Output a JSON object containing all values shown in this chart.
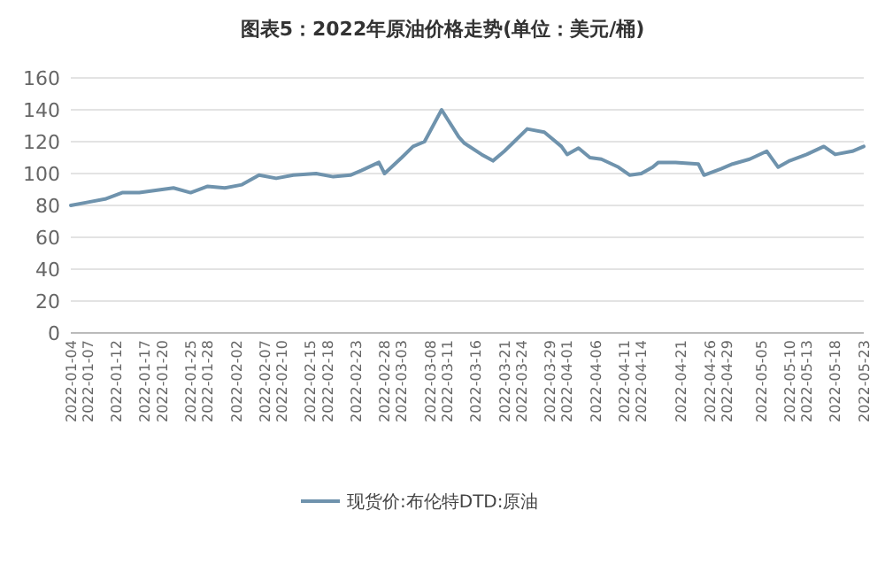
{
  "chart_data": {
    "type": "line",
    "title": "图表5：2022年原油价格走势(单位：美元/桶)",
    "x": [
      "2022-01-04",
      "2022-01-07",
      "2022-01-10",
      "2022-01-13",
      "2022-01-16",
      "2022-01-20",
      "2022-01-22",
      "2022-01-25",
      "2022-01-28",
      "2022-01-31",
      "2022-02-03",
      "2022-02-06",
      "2022-02-09",
      "2022-02-12",
      "2022-02-16",
      "2022-02-19",
      "2022-02-22",
      "2022-02-24",
      "2022-02-27",
      "2022-02-28",
      "2022-03-03",
      "2022-03-05",
      "2022-03-07",
      "2022-03-10",
      "2022-03-13",
      "2022-03-14",
      "2022-03-17",
      "2022-03-19",
      "2022-03-21",
      "2022-03-23",
      "2022-03-25",
      "2022-03-28",
      "2022-03-31",
      "2022-04-01",
      "2022-04-03",
      "2022-04-05",
      "2022-04-07",
      "2022-04-10",
      "2022-04-12",
      "2022-04-14",
      "2022-04-16",
      "2022-04-17",
      "2022-04-20",
      "2022-04-24",
      "2022-04-25",
      "2022-04-28",
      "2022-04-30",
      "2022-05-03",
      "2022-05-06",
      "2022-05-08",
      "2022-05-10",
      "2022-05-13",
      "2022-05-16",
      "2022-05-18",
      "2022-05-21",
      "2022-05-23"
    ],
    "series": [
      {
        "name": "现货价:布伦特DTD:原油",
        "color": "#6f93ad",
        "values": [
          80,
          82,
          84,
          88,
          88,
          90,
          91,
          88,
          92,
          91,
          93,
          99,
          97,
          99,
          100,
          98,
          99,
          102,
          107,
          100,
          110,
          117,
          120,
          140,
          123,
          119,
          112,
          108,
          114,
          121,
          128,
          126,
          117,
          112,
          116,
          110,
          109,
          104,
          99,
          100,
          104,
          107,
          107,
          106,
          99,
          103,
          106,
          109,
          114,
          104,
          108,
          112,
          117,
          112,
          114,
          117
        ]
      }
    ],
    "xlim": [
      "2022-01-04",
      "2022-05-23"
    ],
    "xticks": [
      "2022-01-04",
      "2022-01-07",
      "2022-01-12",
      "2022-01-17",
      "2022-01-20",
      "2022-01-25",
      "2022-01-28",
      "2022-02-02",
      "2022-02-07",
      "2022-02-10",
      "2022-02-15",
      "2022-02-18",
      "2022-02-23",
      "2022-02-28",
      "2022-03-03",
      "2022-03-08",
      "2022-03-11",
      "2022-03-16",
      "2022-03-21",
      "2022-03-24",
      "2022-03-29",
      "2022-04-01",
      "2022-04-06",
      "2022-04-11",
      "2022-04-14",
      "2022-04-21",
      "2022-04-26",
      "2022-04-29",
      "2022-05-05",
      "2022-05-10",
      "2022-05-13",
      "2022-05-18",
      "2022-05-23"
    ],
    "ylim": [
      0,
      160
    ],
    "yticks": [
      0,
      20,
      40,
      60,
      80,
      100,
      120,
      140,
      160
    ],
    "grid": "y",
    "legend": "bottom",
    "marker": "none",
    "line_style": "solid"
  }
}
